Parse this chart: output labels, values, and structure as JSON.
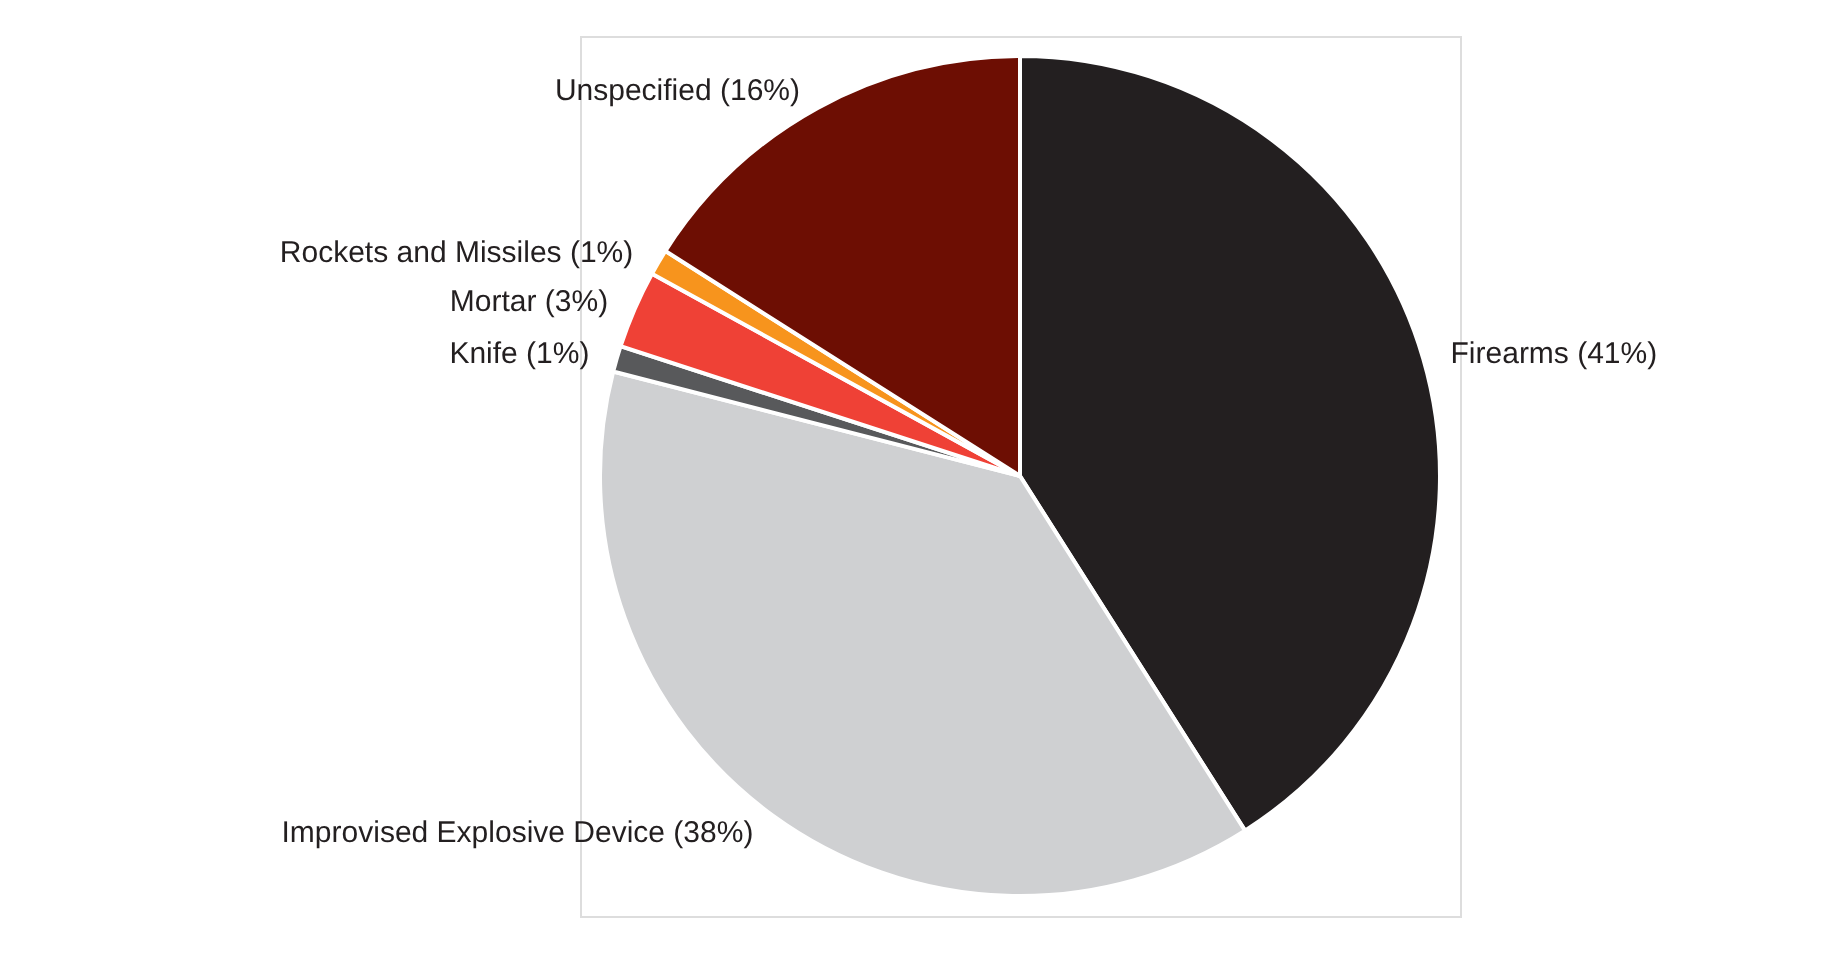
{
  "chart_data": {
    "type": "pie",
    "categories": [
      "Firearms (41%)",
      "Improvised Explosive Device (38%)",
      "Knife (1%)",
      "Mortar (3%)",
      "Rockets and Missiles (1%)",
      "Unspecified (16%)"
    ],
    "values": [
      41,
      38,
      1,
      3,
      1,
      16
    ],
    "colors": [
      "#231f20",
      "#cfd0d2",
      "#58595b",
      "#ef4136",
      "#f7941d",
      "#6d0e03"
    ]
  }
}
